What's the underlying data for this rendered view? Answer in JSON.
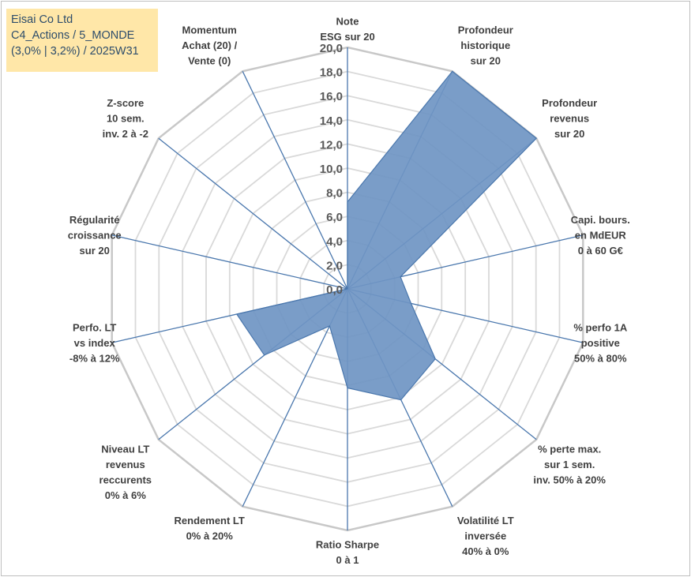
{
  "header": {
    "lines": [
      "Eisai Co Ltd",
      "C4_Actions / 5_MONDE",
      "(3,0% | 3,2%) / 2025W31"
    ]
  },
  "chart_data": {
    "type": "radar",
    "title": "",
    "rmin": 0,
    "rmax": 20,
    "tick_step": 2,
    "ticks": [
      "0,0",
      "2,0",
      "4,0",
      "6,0",
      "8,0",
      "10,0",
      "12,0",
      "14,0",
      "16,0",
      "18,0",
      "20,0"
    ],
    "grid": true,
    "axes": [
      {
        "label": [
          "Note",
          "ESG sur 20"
        ]
      },
      {
        "label": [
          "Profondeur",
          "historique",
          "sur 20"
        ]
      },
      {
        "label": [
          "Profondeur",
          "revenus",
          "sur 20"
        ]
      },
      {
        "label": [
          "Capi. bours.",
          "en MdEUR",
          "0 à 60 G€"
        ]
      },
      {
        "label": [
          "% perfo 1A",
          "positive",
          "50% à 80%"
        ]
      },
      {
        "label": [
          "% perte max.",
          "sur 1 sem.",
          "inv. 50% à 20%"
        ]
      },
      {
        "label": [
          "Volatilité LT",
          "inversée",
          "40% à 0%"
        ]
      },
      {
        "label": [
          "Ratio Sharpe",
          "0 à 1"
        ]
      },
      {
        "label": [
          "Rendement LT",
          "0% à 20%"
        ]
      },
      {
        "label": [
          "Niveau LT",
          "revenus",
          "reccurents",
          "0% à 6%"
        ]
      },
      {
        "label": [
          "Perfo. LT",
          "vs index",
          "-8% à 12%"
        ]
      },
      {
        "label": [
          "Régularité",
          "croissance",
          "sur 20"
        ]
      },
      {
        "label": [
          "Z-score",
          "10 sem.",
          "inv. 2 à -2"
        ]
      },
      {
        "label": [
          "Momentum",
          "Achat (20) /",
          "Vente (0)"
        ]
      }
    ],
    "series": [
      {
        "values": [
          7.2,
          20.0,
          20.0,
          4.5,
          5.4,
          9.3,
          10.2,
          8.2,
          3.4,
          8.8,
          9.4,
          0.0,
          0.0,
          0.0
        ],
        "color": "#4a77ad"
      }
    ],
    "colors": {
      "fill": "#6f95c3",
      "stroke": "#4a77ad",
      "grid": "#d9d9d9",
      "spoke": "#4a77ad"
    }
  }
}
